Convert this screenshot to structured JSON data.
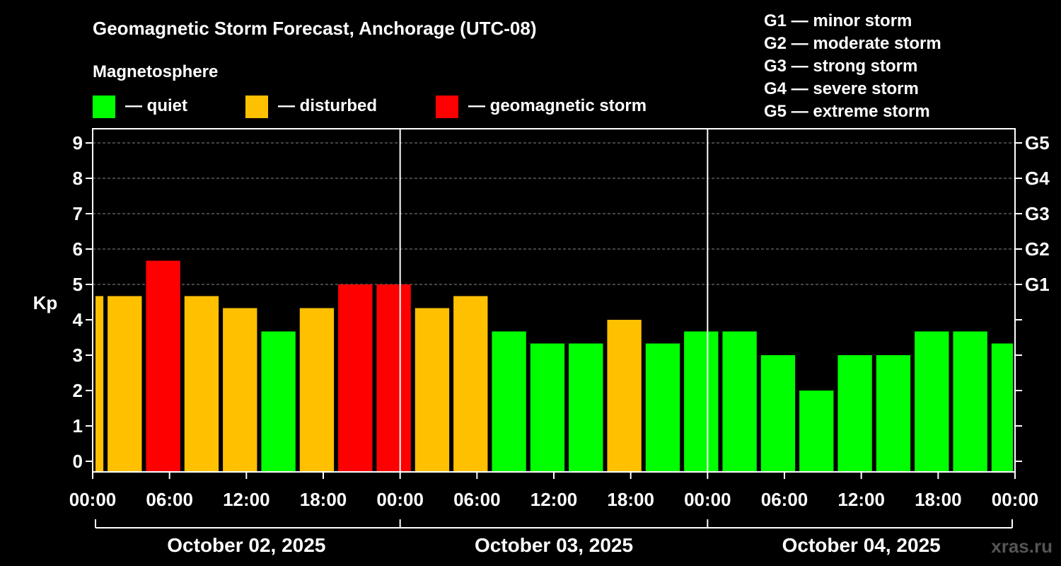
{
  "chart_data": {
    "type": "bar",
    "title": "Geomagnetic Storm Forecast, Anchorage (UTC-08)",
    "legend_title": "Magnetosphere",
    "legend": [
      {
        "label": "— quiet",
        "color": "#00ff00"
      },
      {
        "label": "— disturbed",
        "color": "#ffc000"
      },
      {
        "label": "— geomagnetic storm",
        "color": "#ff0000"
      }
    ],
    "scale_legend": [
      "G1 — minor storm",
      "G2 — moderate storm",
      "G3 — strong storm",
      "G4 — severe storm",
      "G5 — extreme storm"
    ],
    "ylabel": "Kp",
    "ylim": [
      -0.3,
      9.4
    ],
    "y_ticks": [
      "0",
      "1",
      "2",
      "3",
      "4",
      "5",
      "6",
      "7",
      "8",
      "9"
    ],
    "right_ticks": [
      {
        "value": 5,
        "label": "G1"
      },
      {
        "value": 6,
        "label": "G2"
      },
      {
        "value": 7,
        "label": "G3"
      },
      {
        "value": 8,
        "label": "G4"
      },
      {
        "value": 9,
        "label": "G5"
      }
    ],
    "grid": true,
    "x_range_hours": [
      0,
      72
    ],
    "x_tick_labels": [
      "00:00",
      "06:00",
      "12:00",
      "18:00",
      "00:00",
      "06:00",
      "12:00",
      "18:00",
      "00:00",
      "06:00",
      "12:00",
      "18:00",
      "00:00"
    ],
    "days": [
      "October 02, 2025",
      "October 03, 2025",
      "October 04, 2025"
    ],
    "bars": [
      {
        "start_hour": 0,
        "end_hour": 1,
        "kp": 4.67,
        "status": "disturbed"
      },
      {
        "start_hour": 1,
        "end_hour": 4,
        "kp": 4.67,
        "status": "disturbed"
      },
      {
        "start_hour": 4,
        "end_hour": 7,
        "kp": 5.67,
        "status": "storm"
      },
      {
        "start_hour": 7,
        "end_hour": 10,
        "kp": 4.67,
        "status": "disturbed"
      },
      {
        "start_hour": 10,
        "end_hour": 13,
        "kp": 4.33,
        "status": "disturbed"
      },
      {
        "start_hour": 13,
        "end_hour": 16,
        "kp": 3.67,
        "status": "quiet"
      },
      {
        "start_hour": 16,
        "end_hour": 19,
        "kp": 4.33,
        "status": "disturbed"
      },
      {
        "start_hour": 19,
        "end_hour": 22,
        "kp": 5.0,
        "status": "storm"
      },
      {
        "start_hour": 22,
        "end_hour": 25,
        "kp": 5.0,
        "status": "storm"
      },
      {
        "start_hour": 25,
        "end_hour": 28,
        "kp": 4.33,
        "status": "disturbed"
      },
      {
        "start_hour": 28,
        "end_hour": 31,
        "kp": 4.67,
        "status": "disturbed"
      },
      {
        "start_hour": 31,
        "end_hour": 34,
        "kp": 3.67,
        "status": "quiet"
      },
      {
        "start_hour": 34,
        "end_hour": 37,
        "kp": 3.33,
        "status": "quiet"
      },
      {
        "start_hour": 37,
        "end_hour": 40,
        "kp": 3.33,
        "status": "quiet"
      },
      {
        "start_hour": 40,
        "end_hour": 43,
        "kp": 4.0,
        "status": "disturbed"
      },
      {
        "start_hour": 43,
        "end_hour": 46,
        "kp": 3.33,
        "status": "quiet"
      },
      {
        "start_hour": 46,
        "end_hour": 49,
        "kp": 3.67,
        "status": "quiet"
      },
      {
        "start_hour": 49,
        "end_hour": 52,
        "kp": 3.67,
        "status": "quiet"
      },
      {
        "start_hour": 52,
        "end_hour": 55,
        "kp": 3.0,
        "status": "quiet"
      },
      {
        "start_hour": 55,
        "end_hour": 58,
        "kp": 2.0,
        "status": "quiet"
      },
      {
        "start_hour": 58,
        "end_hour": 61,
        "kp": 3.0,
        "status": "quiet"
      },
      {
        "start_hour": 61,
        "end_hour": 64,
        "kp": 3.0,
        "status": "quiet"
      },
      {
        "start_hour": 64,
        "end_hour": 67,
        "kp": 3.67,
        "status": "quiet"
      },
      {
        "start_hour": 67,
        "end_hour": 70,
        "kp": 3.67,
        "status": "quiet"
      },
      {
        "start_hour": 70,
        "end_hour": 72,
        "kp": 3.33,
        "status": "quiet"
      }
    ],
    "status_colors": {
      "quiet": "#00ff00",
      "disturbed": "#ffc000",
      "storm": "#ff0000"
    }
  },
  "watermark": "xras.ru"
}
